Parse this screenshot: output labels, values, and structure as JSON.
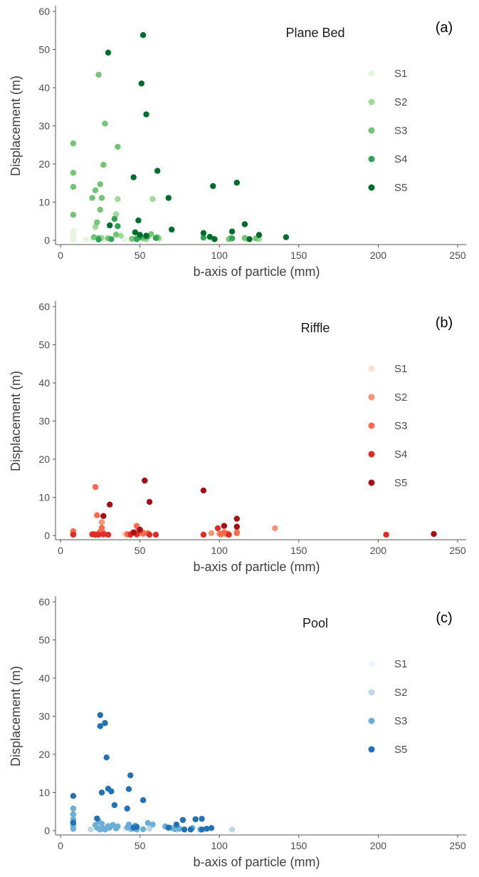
{
  "chart_data": [
    {
      "type": "scatter",
      "tag": "(a)",
      "title": "Plane Bed",
      "xlabel": "b-axis of particle (mm)",
      "ylabel": "Displacement (m)",
      "xlim": [
        0,
        250
      ],
      "ylim": [
        0,
        60
      ],
      "xticks": [
        0,
        50,
        100,
        150,
        200,
        250
      ],
      "yticks": [
        0,
        10,
        20,
        30,
        40,
        50,
        60
      ],
      "grid": false,
      "legend_position": "right",
      "series": [
        {
          "name": "S1",
          "color": "#e5f5e0",
          "points": [
            [
              8,
              0.2
            ],
            [
              8,
              0.5
            ],
            [
              8,
              0.8
            ],
            [
              8,
              1.2
            ],
            [
              8,
              1.6
            ],
            [
              8,
              2.0
            ],
            [
              8,
              2.4
            ],
            [
              16,
              0.2
            ],
            [
              20,
              0.3
            ],
            [
              28,
              0.2
            ],
            [
              40,
              0.3
            ],
            [
              46,
              0.4
            ],
            [
              52,
              0.2
            ]
          ]
        },
        {
          "name": "S2",
          "color": "#a1d99b",
          "points": [
            [
              22,
              3.5
            ],
            [
              24,
              0.5
            ],
            [
              26,
              0.6
            ],
            [
              35,
              6.8
            ],
            [
              36,
              10.8
            ],
            [
              38,
              1.2
            ],
            [
              48,
              0.6
            ],
            [
              50,
              1.4
            ],
            [
              54,
              0.3
            ],
            [
              58,
              10.8
            ],
            [
              62,
              0.5
            ],
            [
              96,
              0.5
            ],
            [
              107,
              0.6
            ],
            [
              117,
              0.4
            ],
            [
              125,
              0.3
            ]
          ]
        },
        {
          "name": "S3",
          "color": "#74c476",
          "points": [
            [
              8,
              25.4
            ],
            [
              8,
              17.7
            ],
            [
              8,
              14.0
            ],
            [
              8,
              6.7
            ],
            [
              20,
              11.1
            ],
            [
              21,
              0.8
            ],
            [
              22,
              13.1
            ],
            [
              23,
              4.7
            ],
            [
              24,
              43.4
            ],
            [
              24,
              0.6
            ],
            [
              25,
              14.7
            ],
            [
              25,
              8.0
            ],
            [
              26,
              11.1
            ],
            [
              27,
              19.8
            ],
            [
              28,
              30.6
            ],
            [
              30,
              0.5
            ],
            [
              35,
              1.5
            ],
            [
              36,
              24.5
            ],
            [
              45,
              0.4
            ],
            [
              50,
              0.7
            ],
            [
              52,
              0.6
            ],
            [
              55,
              1.0
            ],
            [
              57,
              1.6
            ],
            [
              61,
              0.8
            ],
            [
              106,
              0.3
            ],
            [
              116,
              0.6
            ],
            [
              123,
              0.5
            ]
          ]
        },
        {
          "name": "S4",
          "color": "#31a354",
          "points": [
            [
              24,
              0.2
            ],
            [
              32,
              0.3
            ],
            [
              34,
              5.6
            ],
            [
              36,
              3.7
            ],
            [
              48,
              0.3
            ],
            [
              50,
              0.9
            ],
            [
              54,
              1.0
            ],
            [
              60,
              0.6
            ],
            [
              90,
              0.7
            ],
            [
              108,
              0.5
            ]
          ]
        },
        {
          "name": "S5",
          "color": "#006d2c",
          "points": [
            [
              30,
              49.2
            ],
            [
              31,
              3.9
            ],
            [
              46,
              16.5
            ],
            [
              47,
              2.1
            ],
            [
              49,
              5.2
            ],
            [
              50,
              1.4
            ],
            [
              51,
              41.1
            ],
            [
              52,
              53.8
            ],
            [
              54,
              33.0
            ],
            [
              54,
              1.2
            ],
            [
              61,
              18.2
            ],
            [
              68,
              11.1
            ],
            [
              70,
              2.8
            ],
            [
              90,
              1.9
            ],
            [
              94,
              0.9
            ],
            [
              96,
              14.2
            ],
            [
              97,
              0.3
            ],
            [
              108,
              2.3
            ],
            [
              111,
              15.1
            ],
            [
              116,
              4.2
            ],
            [
              119,
              0.3
            ],
            [
              125,
              1.4
            ],
            [
              142,
              0.8
            ]
          ]
        }
      ]
    },
    {
      "type": "scatter",
      "tag": "(b)",
      "title": "Riffle",
      "xlabel": "b-axis of particle (mm)",
      "ylabel": "Displacement (m)",
      "xlim": [
        0,
        250
      ],
      "ylim": [
        0,
        60
      ],
      "xticks": [
        0,
        50,
        100,
        150,
        200,
        250
      ],
      "yticks": [
        0,
        10,
        20,
        30,
        40,
        50,
        60
      ],
      "grid": false,
      "legend_position": "right",
      "series": [
        {
          "name": "S1",
          "color": "#fee0d2",
          "points": [
            [
              22,
              0.2
            ],
            [
              40,
              0.3
            ],
            [
              52,
              0.2
            ]
          ]
        },
        {
          "name": "S2",
          "color": "#fc9272",
          "points": [
            [
              26,
              3.5
            ],
            [
              42,
              0.4
            ],
            [
              45,
              0.6
            ],
            [
              49,
              0.5
            ],
            [
              52,
              0.8
            ],
            [
              95,
              0.6
            ],
            [
              100,
              0.5
            ],
            [
              104,
              0.4
            ],
            [
              111,
              1.0
            ],
            [
              135,
              1.9
            ]
          ]
        },
        {
          "name": "S3",
          "color": "#fb6a4a",
          "points": [
            [
              8,
              1.1
            ],
            [
              8,
              0.5
            ],
            [
              21,
              0.4
            ],
            [
              22,
              12.7
            ],
            [
              23,
              5.3
            ],
            [
              24,
              0.5
            ],
            [
              25,
              1.0
            ],
            [
              26,
              2.0
            ],
            [
              27,
              0.7
            ],
            [
              42,
              0.3
            ],
            [
              48,
              2.5
            ],
            [
              49,
              1.7
            ],
            [
              50,
              1.2
            ],
            [
              52,
              0.5
            ],
            [
              55,
              0.6
            ],
            [
              101,
              0.3
            ],
            [
              103,
              0.8
            ],
            [
              105,
              0.5
            ],
            [
              111,
              0.6
            ]
          ]
        },
        {
          "name": "S4",
          "color": "#de2d26",
          "points": [
            [
              8,
              0.2
            ],
            [
              20,
              0.3
            ],
            [
              22,
              0.2
            ],
            [
              24,
              0.2
            ],
            [
              27,
              0.3
            ],
            [
              30,
              0.2
            ],
            [
              44,
              0.2
            ],
            [
              48,
              0.3
            ],
            [
              56,
              0.2
            ],
            [
              60,
              0.2
            ],
            [
              90,
              0.2
            ],
            [
              99,
              1.9
            ],
            [
              106,
              0.2
            ],
            [
              205,
              0.2
            ]
          ]
        },
        {
          "name": "S5",
          "color": "#a50f15",
          "points": [
            [
              27,
              5.1
            ],
            [
              31,
              8.1
            ],
            [
              46,
              0.8
            ],
            [
              50,
              1.5
            ],
            [
              53,
              14.4
            ],
            [
              56,
              8.8
            ],
            [
              90,
              11.8
            ],
            [
              103,
              2.5
            ],
            [
              111,
              4.4
            ],
            [
              111,
              2.3
            ],
            [
              235,
              0.4
            ]
          ]
        }
      ]
    },
    {
      "type": "scatter",
      "tag": "(c)",
      "title": "Pool",
      "xlabel": "b-axis of particle (mm)",
      "ylabel": "Displacement (m)",
      "xlim": [
        0,
        250
      ],
      "ylim": [
        0,
        60
      ],
      "xticks": [
        0,
        50,
        100,
        150,
        200,
        250
      ],
      "yticks": [
        0,
        10,
        20,
        30,
        40,
        50,
        60
      ],
      "grid": false,
      "legend_position": "right",
      "series": [
        {
          "name": "S1",
          "color": "#eff3ff",
          "points": [
            [
              8,
              0.2
            ],
            [
              40,
              0.3
            ]
          ]
        },
        {
          "name": "S2",
          "color": "#bdd7e7",
          "points": [
            [
              19,
              0.3
            ],
            [
              24,
              0.5
            ],
            [
              30,
              0.6
            ],
            [
              44,
              0.4
            ],
            [
              56,
              0.5
            ],
            [
              68,
              0.6
            ],
            [
              74,
              0.3
            ],
            [
              82,
              0.4
            ],
            [
              108,
              0.3
            ]
          ]
        },
        {
          "name": "S3",
          "color": "#6baed6",
          "points": [
            [
              8,
              5.8
            ],
            [
              8,
              4.3
            ],
            [
              8,
              3.0
            ],
            [
              8,
              1.4
            ],
            [
              8,
              0.5
            ],
            [
              22,
              1.5
            ],
            [
              23,
              0.8
            ],
            [
              24,
              2.5
            ],
            [
              25,
              0.3
            ],
            [
              26,
              1.8
            ],
            [
              27,
              0.6
            ],
            [
              28,
              0.3
            ],
            [
              30,
              1.2
            ],
            [
              31,
              0.8
            ],
            [
              33,
              1.5
            ],
            [
              35,
              0.6
            ],
            [
              36,
              1.1
            ],
            [
              42,
              0.8
            ],
            [
              43,
              1.6
            ],
            [
              45,
              0.5
            ],
            [
              47,
              1.3
            ],
            [
              48,
              0.3
            ],
            [
              52,
              0.4
            ],
            [
              55,
              2.0
            ],
            [
              58,
              1.6
            ],
            [
              66,
              1.1
            ],
            [
              70,
              0.7
            ],
            [
              72,
              0.4
            ],
            [
              75,
              0.5
            ],
            [
              83,
              0.7
            ],
            [
              88,
              0.3
            ]
          ]
        },
        {
          "name": "S5",
          "color": "#2171b5",
          "points": [
            [
              8,
              9.1
            ],
            [
              8,
              2.1
            ],
            [
              23,
              3.2
            ],
            [
              25,
              30.3
            ],
            [
              25,
              27.4
            ],
            [
              26,
              10.0
            ],
            [
              28,
              28.2
            ],
            [
              29,
              19.2
            ],
            [
              30,
              11.0
            ],
            [
              32,
              10.3
            ],
            [
              34,
              6.7
            ],
            [
              42,
              5.8
            ],
            [
              43,
              10.9
            ],
            [
              44,
              14.5
            ],
            [
              46,
              0.8
            ],
            [
              48,
              1.0
            ],
            [
              52,
              8.0
            ],
            [
              68,
              0.8
            ],
            [
              73,
              1.6
            ],
            [
              77,
              2.8
            ],
            [
              78,
              0.3
            ],
            [
              82,
              0.3
            ],
            [
              85,
              3.0
            ],
            [
              89,
              3.1
            ],
            [
              89,
              0.3
            ],
            [
              92,
              0.5
            ],
            [
              95,
              0.7
            ]
          ]
        }
      ]
    }
  ]
}
